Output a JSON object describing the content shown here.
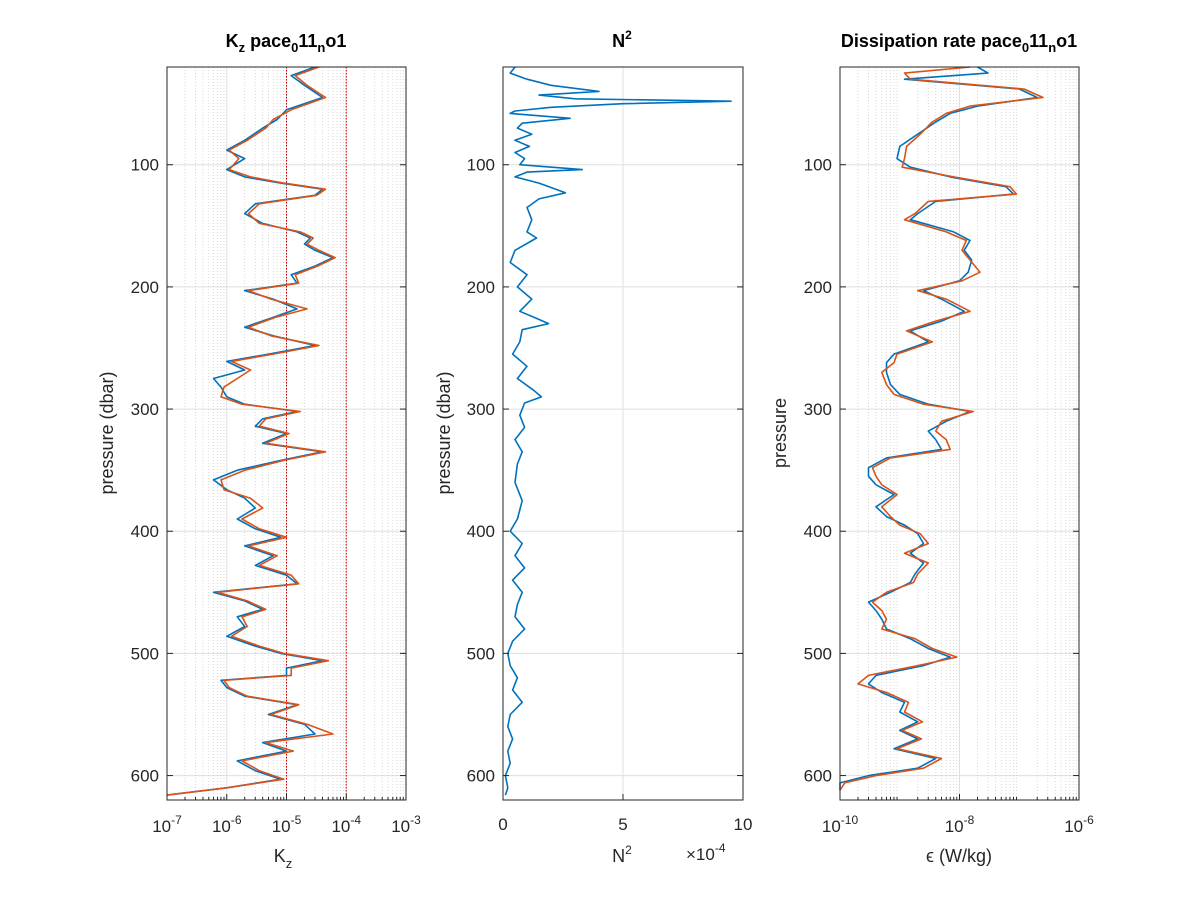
{
  "chart_data": [
    {
      "type": "line",
      "title": {
        "base": "K",
        "sub1": "z",
        "mid": " pace",
        "sub2": "0",
        "mid2": "11",
        "sub3": "n",
        "tail": "o1"
      },
      "xlabel": {
        "base": "K",
        "sub": "z"
      },
      "ylabel": "pressure (dbar)",
      "x_scale": "log",
      "xlim": [
        1e-07,
        0.001
      ],
      "ylim": [
        620,
        20
      ],
      "x_tick_exponents": [
        "-7",
        "-6",
        "-5",
        "-4",
        "-3"
      ],
      "y_ticks": [
        100,
        200,
        300,
        400,
        500,
        600
      ],
      "reference_lines_x": [
        1e-05,
        0.0001
      ],
      "grid": true,
      "series": [
        {
          "color": "#0072BD",
          "y": [
            20,
            27,
            35,
            45,
            55,
            63,
            70,
            80,
            88,
            95,
            104,
            110,
            115,
            120,
            125,
            132,
            140,
            148,
            155,
            160,
            165,
            170,
            176,
            183,
            190,
            197,
            203,
            210,
            218,
            225,
            233,
            240,
            248,
            255,
            261,
            268,
            275,
            282,
            290,
            296,
            302,
            308,
            314,
            320,
            328,
            335,
            342,
            350,
            358,
            366,
            373,
            381,
            390,
            398,
            405,
            412,
            420,
            428,
            436,
            443,
            450,
            457,
            464,
            470,
            478,
            486,
            494,
            500,
            506,
            512,
            518,
            522,
            528,
            535,
            542,
            550,
            558,
            566,
            573,
            580,
            588,
            596,
            603,
            610,
            616
          ],
          "values": [
            3e-05,
            1.2e-05,
            2e-05,
            4e-05,
            1e-05,
            7e-06,
            4e-06,
            2e-06,
            1e-06,
            2e-06,
            1e-06,
            2e-06,
            8e-06,
            4e-05,
            3e-05,
            3e-06,
            2e-06,
            4e-06,
            1.5e-05,
            2.5e-05,
            2e-05,
            3e-05,
            6e-05,
            3e-05,
            1.2e-05,
            1.5e-05,
            2e-06,
            6e-06,
            1.5e-05,
            6e-06,
            2e-06,
            6e-06,
            3e-05,
            5e-06,
            1e-06,
            2e-06,
            6e-07,
            8e-07,
            1e-06,
            2e-06,
            1.5e-05,
            4e-06,
            3e-06,
            1e-05,
            4e-06,
            4e-05,
            8e-06,
            1.5e-06,
            6e-07,
            1e-06,
            2e-06,
            3e-06,
            1.5e-06,
            3e-06,
            8e-06,
            2e-06,
            6e-06,
            3e-06,
            1e-05,
            1.5e-05,
            6e-07,
            2e-06,
            4e-06,
            1.5e-06,
            2e-06,
            1e-06,
            3e-06,
            8e-06,
            4e-05,
            1e-05,
            1e-05,
            8e-07,
            1e-06,
            2e-06,
            1.5e-05,
            5e-06,
            2e-05,
            3e-05,
            4e-06,
            1e-05,
            1.5e-06,
            3e-06,
            8e-06,
            1e-06,
            1e-07
          ]
        },
        {
          "color": "#D95319",
          "y": [
            20,
            27,
            35,
            45,
            55,
            63,
            70,
            80,
            88,
            95,
            104,
            110,
            115,
            120,
            125,
            132,
            140,
            148,
            155,
            160,
            165,
            170,
            176,
            183,
            190,
            197,
            203,
            210,
            218,
            225,
            233,
            240,
            248,
            255,
            261,
            268,
            275,
            282,
            290,
            296,
            302,
            308,
            314,
            320,
            328,
            335,
            342,
            350,
            358,
            366,
            373,
            381,
            390,
            398,
            405,
            412,
            420,
            428,
            436,
            443,
            450,
            457,
            464,
            470,
            478,
            486,
            494,
            500,
            506,
            512,
            518,
            522,
            528,
            535,
            542,
            550,
            558,
            566,
            573,
            580,
            588,
            596,
            603,
            610,
            616
          ],
          "values": [
            3.5e-05,
            1.4e-05,
            2.2e-05,
            4.5e-05,
            1.2e-05,
            6e-06,
            4.5e-06,
            2.2e-06,
            1.1e-06,
            1.6e-06,
            1.1e-06,
            2.5e-06,
            9e-06,
            4.5e-05,
            3.2e-05,
            3.5e-06,
            2.3e-06,
            3.5e-06,
            1.7e-05,
            2.8e-05,
            2.2e-05,
            3.5e-05,
            6.5e-05,
            3.3e-05,
            1.4e-05,
            1.6e-05,
            2.3e-06,
            5.5e-06,
            2.2e-05,
            6.5e-06,
            2.3e-06,
            5.5e-06,
            3.5e-05,
            6e-06,
            1.2e-06,
            2.5e-06,
            1.5e-06,
            9e-07,
            8e-07,
            1.8e-06,
            1.7e-05,
            4.5e-06,
            3.5e-06,
            1.1e-05,
            4.5e-06,
            4.5e-05,
            9e-06,
            2e-06,
            8e-07,
            9e-07,
            2.5e-06,
            4e-06,
            1.8e-06,
            3.5e-06,
            1e-05,
            2.3e-06,
            7e-06,
            3.5e-06,
            1.2e-05,
            1.6e-05,
            7e-07,
            2.2e-06,
            4.5e-06,
            1.8e-06,
            2.2e-06,
            1.2e-06,
            3.5e-06,
            9e-06,
            5e-05,
            1.2e-05,
            1.2e-05,
            9e-07,
            1.1e-06,
            2.2e-06,
            1.6e-05,
            5.5e-06,
            2.2e-05,
            6e-05,
            4.5e-06,
            1.3e-05,
            1.8e-06,
            3.5e-06,
            9e-06,
            1e-06,
            1e-07
          ]
        }
      ]
    },
    {
      "type": "line",
      "title": {
        "base": "N",
        "sup": "2"
      },
      "xlabel": {
        "base": "N",
        "sup": "2"
      },
      "x_multiplier": {
        "prefix": "×10",
        "exp": "-4"
      },
      "ylabel": "pressure (dbar)",
      "x_scale": "linear",
      "xlim": [
        0,
        10
      ],
      "ylim": [
        620,
        20
      ],
      "x_ticks": [
        "0",
        "5",
        "10"
      ],
      "y_ticks": [
        100,
        200,
        300,
        400,
        500,
        600
      ],
      "grid": true,
      "series": [
        {
          "color": "#0072BD",
          "y": [
            20,
            25,
            30,
            35,
            40,
            43,
            46,
            48,
            50,
            53,
            56,
            58,
            62,
            66,
            70,
            75,
            80,
            85,
            90,
            95,
            100,
            104,
            106,
            110,
            115,
            120,
            123,
            128,
            135,
            145,
            155,
            160,
            170,
            180,
            190,
            200,
            210,
            220,
            225,
            230,
            235,
            245,
            255,
            265,
            275,
            285,
            290,
            295,
            305,
            315,
            325,
            335,
            345,
            360,
            375,
            390,
            400,
            410,
            420,
            430,
            440,
            450,
            460,
            470,
            480,
            490,
            500,
            510,
            520,
            530,
            540,
            550,
            560,
            570,
            580,
            590,
            600,
            610,
            616
          ],
          "values": [
            0.5,
            0.3,
            1,
            2,
            4,
            1.5,
            3,
            9.5,
            5,
            2,
            0.5,
            0.3,
            2.8,
            0.8,
            0.6,
            1.2,
            0.5,
            1.1,
            0.5,
            0.9,
            0.7,
            3.3,
            1.0,
            0.5,
            1.5,
            2.2,
            2.6,
            1.5,
            1.0,
            1.2,
            1.0,
            1.4,
            0.5,
            0.3,
            1.0,
            0.6,
            1.2,
            0.7,
            1.3,
            1.9,
            0.8,
            0.7,
            0.4,
            1.0,
            0.6,
            1.3,
            1.6,
            0.9,
            0.7,
            0.9,
            0.5,
            0.8,
            0.6,
            0.5,
            0.8,
            0.6,
            0.3,
            0.8,
            0.5,
            0.9,
            0.4,
            0.8,
            0.6,
            0.5,
            0.9,
            0.4,
            0.2,
            0.3,
            0.6,
            0.4,
            0.8,
            0.3,
            0.2,
            0.4,
            0.2,
            0.3,
            0.1,
            0.2,
            0.1
          ]
        }
      ]
    },
    {
      "type": "line",
      "title": {
        "base": "Dissipation rate pace",
        "sub1": "0",
        "mid": "11",
        "sub2": "n",
        "tail": "o1"
      },
      "xlabel": "ϵ (W/kg)",
      "ylabel": "pressure",
      "x_scale": "log",
      "xlim": [
        1e-10,
        1e-06
      ],
      "x_tick_exponents": [
        "-10",
        "-8",
        "-6"
      ],
      "ylim": [
        620,
        20
      ],
      "y_ticks": [
        100,
        200,
        300,
        400,
        500,
        600
      ],
      "grid": true,
      "series": [
        {
          "color": "#0072BD",
          "y": [
            20,
            25,
            30,
            38,
            45,
            52,
            58,
            65,
            75,
            85,
            95,
            102,
            110,
            118,
            124,
            130,
            140,
            145,
            155,
            162,
            170,
            178,
            188,
            195,
            203,
            210,
            220,
            228,
            236,
            245,
            255,
            262,
            270,
            280,
            288,
            296,
            302,
            310,
            318,
            325,
            333,
            340,
            348,
            355,
            362,
            370,
            380,
            388,
            395,
            402,
            410,
            418,
            426,
            435,
            442,
            450,
            458,
            465,
            472,
            480,
            488,
            496,
            503,
            510,
            518,
            525,
            532,
            540,
            548,
            556,
            563,
            570,
            578,
            586,
            594,
            600,
            606,
            612
          ],
          "values": [
            2e-08,
            3e-08,
            1.2e-09,
            1e-07,
            2e-07,
            2e-08,
            7e-09,
            4e-09,
            2e-09,
            1e-09,
            9e-10,
            1.5e-09,
            7e-09,
            6e-08,
            8e-08,
            4e-09,
            2e-09,
            1.5e-09,
            8e-09,
            1.5e-08,
            1.2e-08,
            1.6e-08,
            1.4e-08,
            1e-08,
            2.5e-09,
            5e-09,
            1.2e-08,
            5e-09,
            1.5e-09,
            3e-09,
            8e-10,
            6e-10,
            6e-10,
            7e-10,
            1e-09,
            3e-09,
            1.5e-08,
            6e-09,
            3e-09,
            4e-09,
            5e-09,
            6e-10,
            3e-10,
            3e-10,
            4e-10,
            8e-10,
            4e-10,
            6e-10,
            1.2e-09,
            2e-09,
            2.5e-09,
            1.5e-09,
            2.5e-09,
            1.8e-09,
            1.5e-09,
            7e-10,
            3e-10,
            4e-10,
            5e-10,
            6e-10,
            1.5e-09,
            3e-09,
            7e-09,
            2.5e-09,
            4e-10,
            3e-10,
            5e-10,
            1.2e-09,
            1e-09,
            2e-09,
            1e-09,
            2e-09,
            8e-10,
            4e-09,
            2e-09,
            3e-10,
            1e-10,
            1e-10
          ]
        },
        {
          "color": "#D95319",
          "y": [
            20,
            25,
            30,
            38,
            45,
            52,
            58,
            65,
            75,
            85,
            95,
            102,
            110,
            118,
            124,
            130,
            140,
            145,
            155,
            162,
            170,
            178,
            188,
            195,
            203,
            210,
            220,
            228,
            236,
            245,
            255,
            262,
            270,
            280,
            288,
            296,
            302,
            310,
            318,
            325,
            333,
            340,
            348,
            355,
            362,
            370,
            380,
            388,
            395,
            402,
            410,
            418,
            426,
            435,
            442,
            450,
            458,
            465,
            472,
            480,
            488,
            496,
            503,
            510,
            518,
            525,
            532,
            540,
            548,
            556,
            563,
            570,
            578,
            586,
            594,
            600,
            606,
            612
          ],
          "values": [
            1.5e-08,
            1.2e-09,
            1.5e-09,
            1.2e-07,
            2.5e-07,
            1.5e-08,
            6e-09,
            3.5e-09,
            2.2e-09,
            1.3e-09,
            1.2e-09,
            1.1e-09,
            8e-09,
            7e-08,
            9e-08,
            3e-09,
            1.8e-09,
            1.2e-09,
            6e-09,
            1.3e-08,
            1.1e-08,
            1.5e-08,
            2.2e-08,
            1.1e-08,
            2e-09,
            6e-09,
            1.5e-08,
            4e-09,
            1.3e-09,
            3.5e-09,
            9e-10,
            8e-10,
            5e-10,
            6e-10,
            8e-10,
            2.5e-09,
            1.7e-08,
            5e-09,
            4e-09,
            6e-09,
            7e-09,
            7e-10,
            3.5e-10,
            4e-10,
            5e-10,
            9e-10,
            5e-10,
            7e-10,
            1e-09,
            2.2e-09,
            3e-09,
            1.2e-09,
            3e-09,
            2e-09,
            1.7e-09,
            6e-10,
            3.5e-10,
            5e-10,
            6e-10,
            5e-10,
            1.8e-09,
            3.5e-09,
            9e-09,
            2e-09,
            3e-10,
            2e-10,
            6e-10,
            1.4e-09,
            1.2e-09,
            2.4e-09,
            1.1e-09,
            2.3e-09,
            9e-10,
            5e-09,
            2.5e-09,
            4e-10,
            1.2e-10,
            1e-10
          ]
        }
      ]
    }
  ]
}
